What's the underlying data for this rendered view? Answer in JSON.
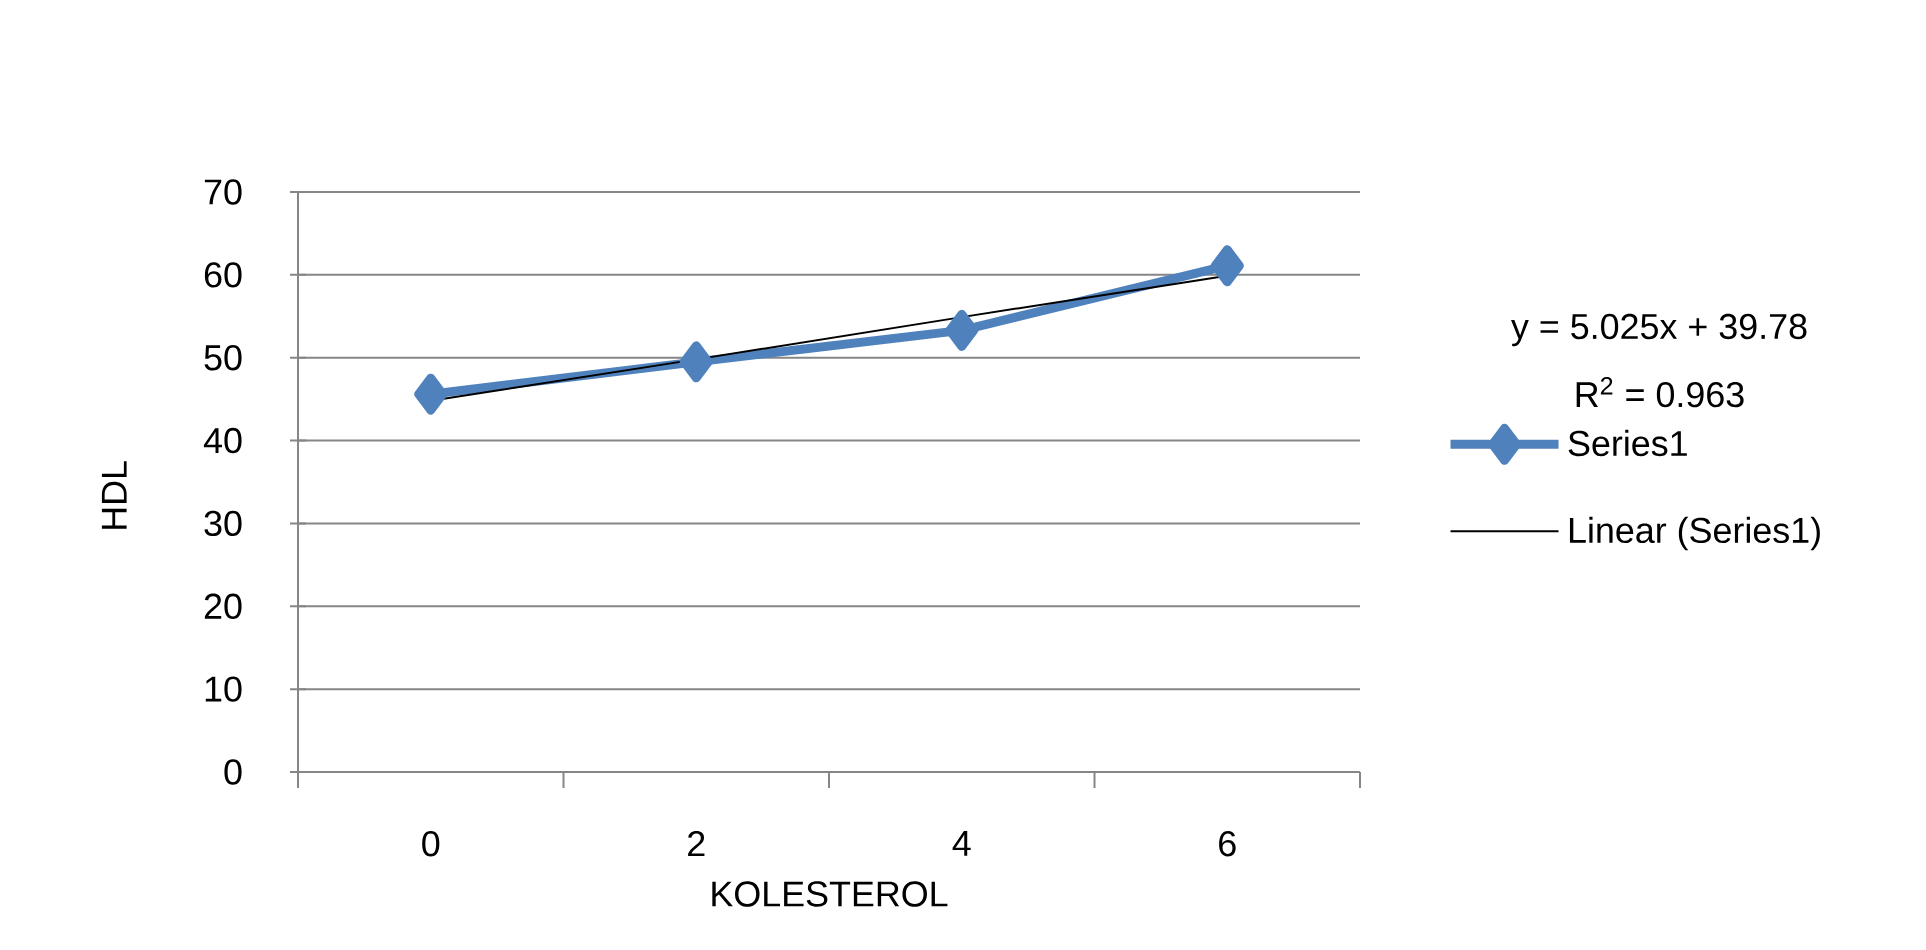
{
  "chart_data": {
    "type": "line",
    "categories": [
      "0",
      "2",
      "4",
      "6"
    ],
    "xlabel": "KOLESTEROL",
    "ylabel": "HDL",
    "ylim": [
      0,
      70
    ],
    "yticks": [
      0,
      10,
      20,
      30,
      40,
      50,
      60,
      70
    ],
    "grid": "y",
    "legend": "right",
    "marker": "diamond",
    "series": [
      {
        "name": "Series1",
        "color": "#4f81bd",
        "values": [
          45.6,
          49.5,
          53.3,
          61.1
        ]
      },
      {
        "name": "Linear (Series1)",
        "color": "#000000",
        "marker": "none",
        "values": [
          44.8,
          49.8,
          54.9,
          59.9
        ]
      }
    ],
    "annotations": [
      "y = 5.025x + 39.78",
      "R$^{2}$ = 0.963"
    ]
  }
}
